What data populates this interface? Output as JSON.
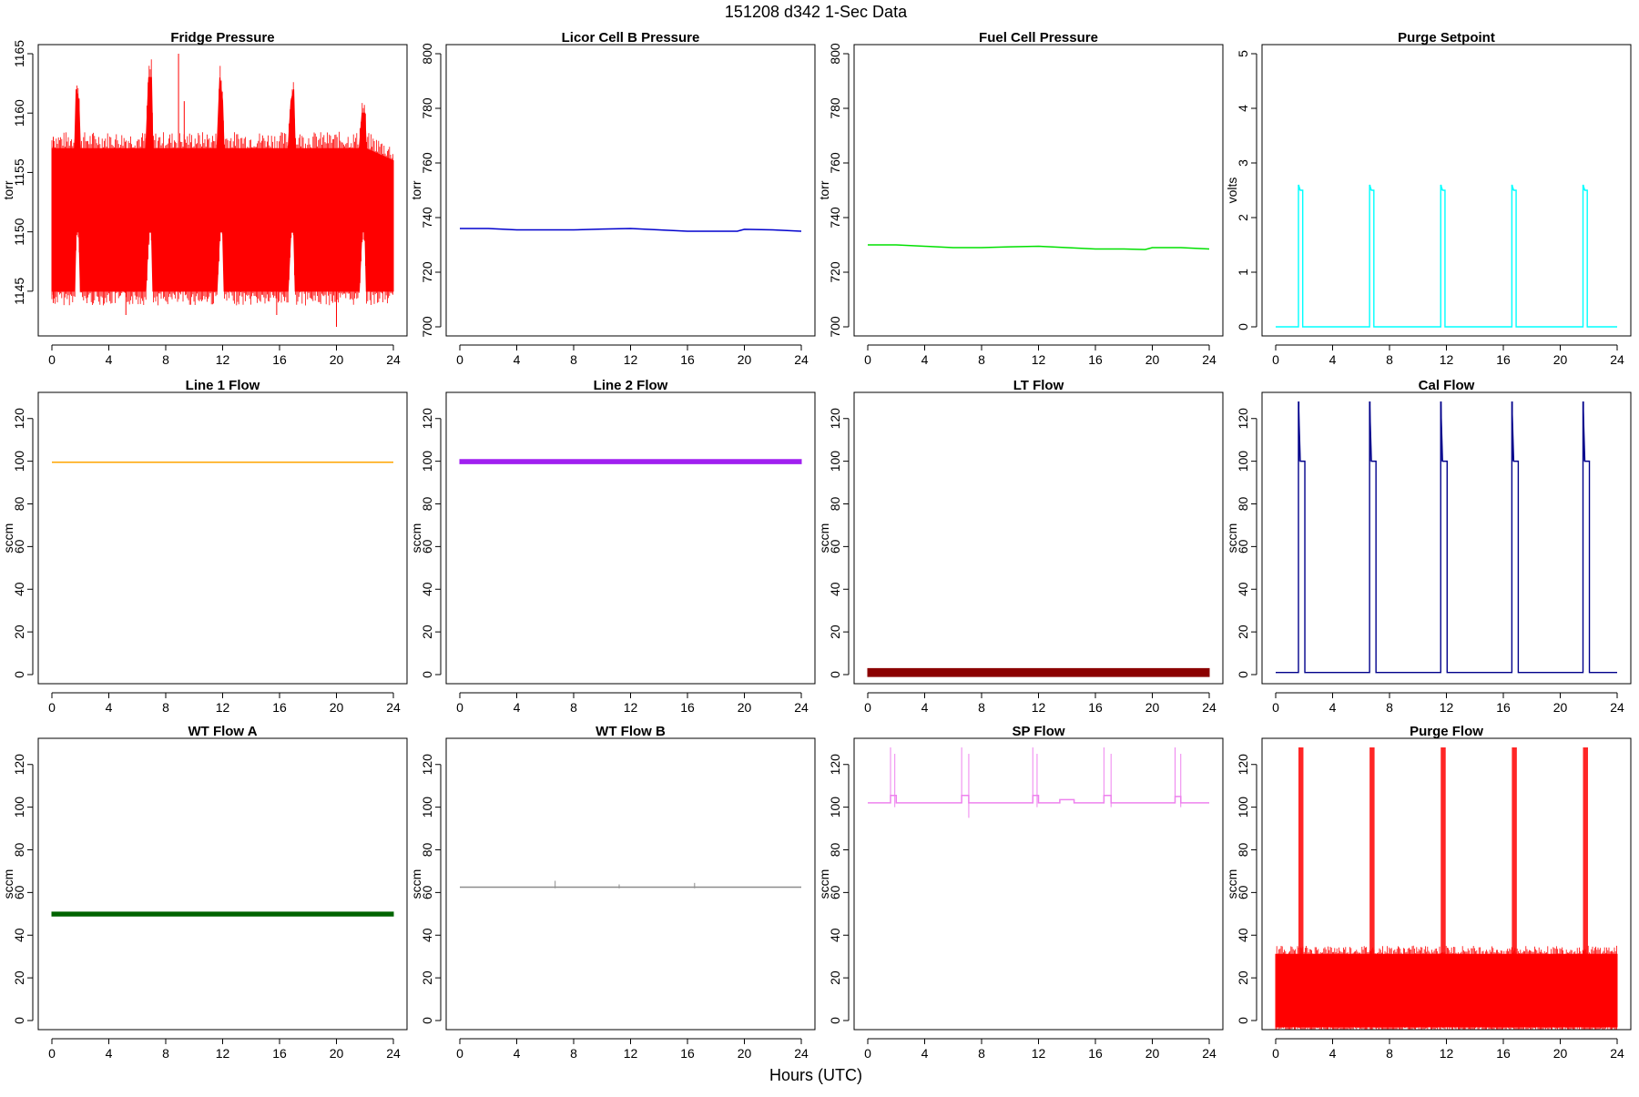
{
  "figure": {
    "title": "151208   d342   1-Sec Data",
    "xlabel": "Hours (UTC)"
  },
  "chart_data": [
    {
      "type": "line",
      "title": "Fridge Pressure",
      "ylabel": "torr",
      "xlim": [
        0,
        24
      ],
      "ylim": [
        1142,
        1165
      ],
      "xticks": [
        0,
        4,
        8,
        12,
        16,
        20,
        24
      ],
      "yticks": [
        1145,
        1150,
        1155,
        1160,
        1165
      ],
      "color": "#ff0000",
      "series": [
        {
          "kind": "band",
          "x": [
            0,
            1.6,
            1.7,
            1.9,
            2.0,
            6.6,
            6.8,
            7.0,
            7.1,
            11.6,
            11.8,
            12.0,
            12.1,
            16.6,
            16.8,
            17.0,
            17.1,
            21.6,
            21.8,
            22.0,
            22.1,
            24
          ],
          "low": [
            1145,
            1145,
            1150,
            1150,
            1145,
            1145,
            1150,
            1150,
            1145,
            1145,
            1150,
            1150,
            1145,
            1145,
            1150,
            1150,
            1145,
            1145,
            1150,
            1150,
            1145,
            1145
          ],
          "high": [
            1157,
            1157,
            1162,
            1161,
            1157,
            1157,
            1163,
            1163,
            1157,
            1157,
            1163,
            1161,
            1157,
            1157,
            1161,
            1162,
            1157,
            1157,
            1160,
            1160,
            1157,
            1156
          ]
        },
        {
          "kind": "spikes",
          "x": [
            0.1,
            5.2,
            8.9,
            9.3,
            15.8,
            20.0
          ],
          "low": [
            1144,
            1143,
            1150,
            1150,
            1143,
            1142
          ],
          "high": [
            1158,
            1157,
            1165,
            1161,
            1157,
            1155
          ]
        }
      ]
    },
    {
      "type": "line",
      "title": "Licor Cell B Pressure",
      "ylabel": "torr",
      "xlim": [
        0,
        24
      ],
      "ylim": [
        700,
        800
      ],
      "xticks": [
        0,
        4,
        8,
        12,
        16,
        20,
        24
      ],
      "yticks": [
        700,
        720,
        740,
        760,
        780,
        800
      ],
      "color": "#0000cd",
      "series": [
        {
          "kind": "line",
          "x": [
            0,
            2,
            4,
            6,
            8,
            10,
            12,
            14,
            16,
            18,
            19.5,
            20,
            22,
            24
          ],
          "y": [
            736,
            736,
            735.5,
            735.5,
            735.5,
            735.8,
            736,
            735.5,
            735,
            735,
            735,
            735.7,
            735.5,
            735
          ]
        }
      ]
    },
    {
      "type": "line",
      "title": "Fuel Cell Pressure",
      "ylabel": "torr",
      "xlim": [
        0,
        24
      ],
      "ylim": [
        700,
        800
      ],
      "xticks": [
        0,
        4,
        8,
        12,
        16,
        20,
        24
      ],
      "yticks": [
        700,
        720,
        740,
        760,
        780,
        800
      ],
      "color": "#00e000",
      "series": [
        {
          "kind": "line",
          "x": [
            0,
            2,
            4,
            6,
            8,
            10,
            12,
            14,
            16,
            18,
            19.5,
            20,
            22,
            24
          ],
          "y": [
            730,
            730,
            729.5,
            729,
            729,
            729.3,
            729.5,
            729,
            728.5,
            728.5,
            728.3,
            729,
            729,
            728.5
          ]
        }
      ]
    },
    {
      "type": "line",
      "title": "Purge Setpoint",
      "ylabel": "volts",
      "xlim": [
        0,
        24
      ],
      "ylim": [
        0,
        5
      ],
      "xticks": [
        0,
        4,
        8,
        12,
        16,
        20,
        24
      ],
      "yticks": [
        0,
        1,
        2,
        3,
        4,
        5
      ],
      "color": "#00ffff",
      "series": [
        {
          "kind": "pulses",
          "baseline": 0,
          "level": 2.5,
          "peak": 2.6,
          "starts": [
            1.6,
            6.6,
            11.6,
            16.6,
            21.6
          ],
          "width": 0.3
        }
      ]
    },
    {
      "type": "line",
      "title": "Line 1 Flow",
      "ylabel": "sccm",
      "xlim": [
        0,
        24
      ],
      "ylim": [
        0,
        128
      ],
      "xticks": [
        0,
        4,
        8,
        12,
        16,
        20,
        24
      ],
      "yticks": [
        0,
        20,
        40,
        60,
        80,
        100,
        120
      ],
      "color": "#ffa500",
      "series": [
        {
          "kind": "line",
          "x": [
            0,
            24
          ],
          "y": [
            99.5,
            99.5
          ]
        }
      ]
    },
    {
      "type": "line",
      "title": "Line 2 Flow",
      "ylabel": "sccm",
      "xlim": [
        0,
        24
      ],
      "ylim": [
        0,
        128
      ],
      "xticks": [
        0,
        4,
        8,
        12,
        16,
        20,
        24
      ],
      "yticks": [
        0,
        20,
        40,
        60,
        80,
        100,
        120
      ],
      "color": "#a020f0",
      "series": [
        {
          "kind": "band",
          "x": [
            0,
            24
          ],
          "low": [
            98.8,
            98.8
          ],
          "high": [
            100.8,
            100.8
          ]
        }
      ]
    },
    {
      "type": "line",
      "title": "LT Flow",
      "ylabel": "sccm",
      "xlim": [
        0,
        24
      ],
      "ylim": [
        0,
        128
      ],
      "xticks": [
        0,
        4,
        8,
        12,
        16,
        20,
        24
      ],
      "yticks": [
        0,
        20,
        40,
        60,
        80,
        100,
        120
      ],
      "color": "#8b0000",
      "series": [
        {
          "kind": "band",
          "x": [
            0,
            24
          ],
          "low": [
            -0.9,
            -0.9
          ],
          "high": [
            2.8,
            2.8
          ]
        }
      ]
    },
    {
      "type": "line",
      "title": "Cal Flow",
      "ylabel": "sccm",
      "xlim": [
        0,
        24
      ],
      "ylim": [
        0,
        128
      ],
      "xticks": [
        0,
        4,
        8,
        12,
        16,
        20,
        24
      ],
      "yticks": [
        0,
        20,
        40,
        60,
        80,
        100,
        120
      ],
      "color": "#00008b",
      "series": [
        {
          "kind": "pulses",
          "baseline": 1,
          "level": 100,
          "peak": 128,
          "starts": [
            1.6,
            6.6,
            11.6,
            16.6,
            21.6
          ],
          "width": 0.45
        }
      ]
    },
    {
      "type": "line",
      "title": "WT Flow A",
      "ylabel": "sccm",
      "xlim": [
        0,
        24
      ],
      "ylim": [
        0,
        128
      ],
      "xticks": [
        0,
        4,
        8,
        12,
        16,
        20,
        24
      ],
      "yticks": [
        0,
        20,
        40,
        60,
        80,
        100,
        120
      ],
      "color": "#006400",
      "series": [
        {
          "kind": "band",
          "x": [
            0,
            24
          ],
          "low": [
            49,
            49
          ],
          "high": [
            50.8,
            50.8
          ]
        }
      ]
    },
    {
      "type": "line",
      "title": "WT Flow B",
      "ylabel": "sccm",
      "xlim": [
        0,
        24
      ],
      "ylim": [
        0,
        128
      ],
      "xticks": [
        0,
        4,
        8,
        12,
        16,
        20,
        24
      ],
      "yticks": [
        0,
        20,
        40,
        60,
        80,
        100,
        120
      ],
      "color": "#8c8c8c",
      "series": [
        {
          "kind": "line",
          "x": [
            0,
            24
          ],
          "y": [
            62.5,
            62.5
          ]
        },
        {
          "kind": "spikes",
          "x": [
            6.7,
            16.5,
            11.2
          ],
          "low": [
            62,
            62,
            62
          ],
          "high": [
            65.5,
            64.5,
            63.8
          ]
        }
      ]
    },
    {
      "type": "line",
      "title": "SP Flow",
      "ylabel": "sccm",
      "xlim": [
        0,
        24
      ],
      "ylim": [
        0,
        128
      ],
      "xticks": [
        0,
        4,
        8,
        12,
        16,
        20,
        24
      ],
      "yticks": [
        0,
        20,
        40,
        60,
        80,
        100,
        120
      ],
      "color": "#ee82ee",
      "series": [
        {
          "kind": "line",
          "x": [
            0,
            1.6,
            1.6,
            2.0,
            2.0,
            6.6,
            6.6,
            7.1,
            7.1,
            11.6,
            11.6,
            12.0,
            12.0,
            13.5,
            13.5,
            14.5,
            14.5,
            16.6,
            16.6,
            17.1,
            17.1,
            21.6,
            21.6,
            22.0,
            22.0,
            24
          ],
          "y": [
            102,
            102,
            105.5,
            105.5,
            102,
            102,
            105.5,
            105.5,
            102,
            102,
            105.5,
            105.5,
            102,
            102,
            103.5,
            103.5,
            102,
            102,
            105.5,
            105.5,
            102,
            102,
            105,
            105,
            102,
            102
          ]
        },
        {
          "kind": "spikes",
          "x": [
            1.6,
            1.9,
            6.6,
            7.1,
            11.6,
            11.9,
            16.6,
            17.1,
            21.6,
            22.0
          ],
          "low": [
            102,
            100,
            102,
            95,
            102,
            100,
            102,
            100,
            102,
            100
          ],
          "high": [
            128,
            125,
            128,
            125,
            128,
            125,
            128,
            125,
            128,
            125
          ]
        }
      ]
    },
    {
      "type": "line",
      "title": "Purge Flow",
      "ylabel": "sccm",
      "xlim": [
        0,
        24
      ],
      "ylim": [
        0,
        128
      ],
      "xticks": [
        0,
        4,
        8,
        12,
        16,
        20,
        24
      ],
      "yticks": [
        0,
        20,
        40,
        60,
        80,
        100,
        120
      ],
      "color": "#ff0000",
      "series": [
        {
          "kind": "band",
          "x": [
            0,
            24
          ],
          "low": [
            -3,
            -3
          ],
          "high": [
            31,
            31
          ]
        },
        {
          "kind": "bursts",
          "starts": [
            1.6,
            6.6,
            11.6,
            16.6,
            21.6
          ],
          "width": 0.35,
          "low": -3,
          "high": 128
        }
      ]
    }
  ]
}
